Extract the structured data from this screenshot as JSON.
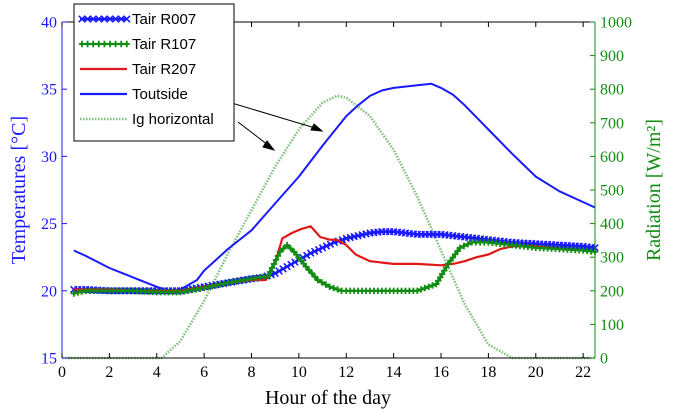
{
  "chart_data": {
    "type": "line",
    "xlabel": "Hour of the day",
    "ylabel_left": "Temperatures [°C]",
    "ylabel_right": "Radiation [W/m²]",
    "xlim": [
      0,
      22.5
    ],
    "ylim_left": [
      15,
      40
    ],
    "ylim_right": [
      0,
      1000
    ],
    "x_ticks": [
      0,
      2,
      4,
      6,
      8,
      10,
      12,
      14,
      16,
      18,
      20,
      22
    ],
    "y_left_ticks": [
      15,
      20,
      25,
      30,
      35,
      40
    ],
    "y_right_ticks": [
      0,
      100,
      200,
      300,
      400,
      500,
      600,
      700,
      800,
      900,
      1000
    ],
    "grid": false,
    "legend_position": "top-left",
    "axis_colors": {
      "left": "#1a1aff",
      "right": "#128c12",
      "bottom": "#000000"
    },
    "series": [
      {
        "name": "Tair R007",
        "axis": "left",
        "color": "#1a1aff",
        "marker": "x",
        "x": [
          0.5,
          1,
          2,
          3,
          4,
          5,
          6,
          7,
          8,
          8.5,
          9,
          9.5,
          10,
          10.5,
          11,
          11.5,
          12,
          12.5,
          13,
          13.5,
          14,
          14.5,
          15,
          16,
          17,
          18,
          19,
          20,
          21,
          22,
          22.5
        ],
        "y": [
          20.1,
          20.1,
          20.0,
          20.0,
          20.0,
          20.0,
          20.3,
          20.6,
          20.9,
          21.0,
          21.3,
          21.8,
          22.3,
          22.8,
          23.2,
          23.6,
          23.9,
          24.1,
          24.3,
          24.4,
          24.4,
          24.3,
          24.2,
          24.2,
          24.0,
          23.8,
          23.6,
          23.5,
          23.4,
          23.3,
          23.2
        ]
      },
      {
        "name": "Tair R107",
        "axis": "left",
        "color": "#128c12",
        "marker": "+",
        "x": [
          0.5,
          1,
          2,
          3,
          4,
          5,
          6,
          7,
          8,
          8.7,
          9.2,
          9.5,
          9.8,
          10.3,
          10.8,
          11.3,
          11.8,
          12,
          13,
          14,
          15,
          15.8,
          16.3,
          16.8,
          17.3,
          18,
          19,
          20,
          21,
          22,
          22.5
        ],
        "y": [
          19.8,
          20.0,
          20.0,
          20.0,
          19.9,
          19.9,
          20.2,
          20.6,
          20.9,
          21.1,
          22.9,
          23.4,
          22.9,
          21.8,
          20.8,
          20.3,
          20.0,
          20.0,
          20.0,
          20.0,
          20.0,
          20.5,
          22.0,
          23.2,
          23.6,
          23.6,
          23.4,
          23.2,
          23.1,
          23.0,
          22.9
        ]
      },
      {
        "name": "Tair R207",
        "axis": "left",
        "color": "#e01818",
        "marker": "",
        "x": [
          0.5,
          1,
          2,
          3,
          4,
          5,
          6,
          7,
          8,
          8.6,
          9.0,
          9.3,
          9.7,
          10.1,
          10.5,
          10.9,
          11.3,
          11.6,
          12,
          12.4,
          13,
          14,
          15,
          16,
          16.5,
          17,
          17.5,
          18,
          18.5,
          19,
          20,
          21,
          22,
          22.5
        ],
        "y": [
          20.1,
          20.1,
          20.1,
          20.0,
          20.0,
          20.0,
          20.3,
          20.6,
          20.8,
          20.8,
          22.1,
          23.9,
          24.3,
          24.6,
          24.8,
          24.0,
          23.8,
          23.8,
          23.4,
          22.7,
          22.2,
          22.0,
          22.0,
          21.9,
          22.0,
          22.2,
          22.5,
          22.7,
          23.1,
          23.3,
          23.3,
          23.1,
          23.0,
          22.9
        ]
      },
      {
        "name": "Toutside",
        "axis": "left",
        "color": "#1a1aff",
        "marker": "",
        "x": [
          0.5,
          1,
          2,
          3,
          4,
          4.5,
          5,
          5.7,
          6,
          6.5,
          7,
          8,
          9,
          10,
          11,
          12,
          12.5,
          13,
          13.5,
          14,
          15,
          15.6,
          16,
          16.5,
          17,
          18,
          19,
          20,
          21,
          22,
          22.5
        ],
        "y": [
          23.0,
          22.6,
          21.7,
          21.0,
          20.3,
          20.0,
          20.1,
          20.8,
          21.5,
          22.3,
          23.1,
          24.5,
          26.5,
          28.5,
          30.8,
          33.0,
          33.8,
          34.5,
          34.9,
          35.1,
          35.3,
          35.4,
          35.1,
          34.6,
          33.8,
          32.0,
          30.2,
          28.5,
          27.4,
          26.6,
          26.2
        ]
      },
      {
        "name": "Ig horizontal",
        "axis": "right",
        "color": "#7ac27a",
        "marker": "",
        "x": [
          0,
          4.2,
          5,
          6,
          7,
          8,
          9,
          10,
          11,
          11.6,
          12,
          13,
          14,
          15,
          16,
          17,
          18,
          19,
          22.5
        ],
        "y": [
          0,
          0,
          50,
          170,
          310,
          440,
          570,
          680,
          760,
          780,
          775,
          720,
          620,
          480,
          320,
          160,
          40,
          0,
          0
        ]
      }
    ]
  }
}
